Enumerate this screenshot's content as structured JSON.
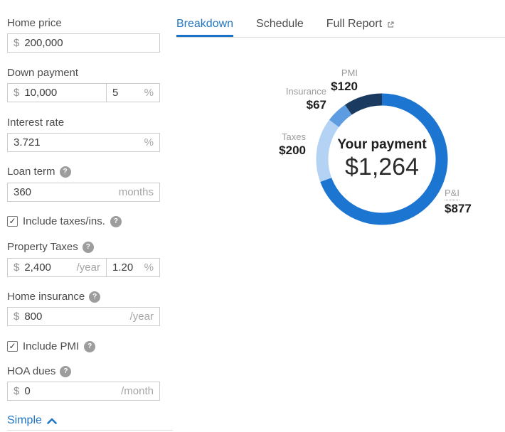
{
  "form": {
    "home_price": {
      "label": "Home price",
      "prefix": "$",
      "value": "200,000"
    },
    "down_payment": {
      "label": "Down payment",
      "prefix": "$",
      "value": "10,000",
      "pct_value": "5",
      "pct_suffix": "%"
    },
    "interest_rate": {
      "label": "Interest rate",
      "value": "3.721",
      "suffix": "%"
    },
    "loan_term": {
      "label": "Loan term",
      "value": "360",
      "suffix": "months"
    },
    "include_taxes": {
      "label": "Include taxes/ins.",
      "checked": true
    },
    "property_taxes": {
      "label": "Property Taxes",
      "prefix": "$",
      "value": "2,400",
      "suffix": "/year",
      "pct_value": "1.20",
      "pct_suffix": "%"
    },
    "home_insurance": {
      "label": "Home insurance",
      "prefix": "$",
      "value": "800",
      "suffix": "/year"
    },
    "include_pmi": {
      "label": "Include PMI",
      "checked": true
    },
    "hoa_dues": {
      "label": "HOA dues",
      "prefix": "$",
      "value": "0",
      "suffix": "/month"
    },
    "simple_link": {
      "label": "Simple"
    },
    "help_glyph": "?"
  },
  "tabs": {
    "breakdown": "Breakdown",
    "schedule": "Schedule",
    "full_report": "Full Report"
  },
  "chart_data": {
    "type": "pie",
    "subtype": "donut",
    "center_label": "Your payment",
    "center_value": "$1,264",
    "total": 1264,
    "direction": "clockwise",
    "start_angle_deg": 0,
    "segments": [
      {
        "name": "P&I",
        "value": 877,
        "display": "$877",
        "color": "#1b75d1"
      },
      {
        "name": "Taxes",
        "value": 200,
        "display": "$200",
        "color": "#b3d2f4"
      },
      {
        "name": "Insurance",
        "value": 67,
        "display": "$67",
        "color": "#5e9ce2"
      },
      {
        "name": "PMI",
        "value": 120,
        "display": "$120",
        "color": "#1a3a60"
      }
    ],
    "colors": {
      "accent_blue": "#1b75d1",
      "link_blue": "#2276c3",
      "navy": "#1a3a60"
    }
  }
}
